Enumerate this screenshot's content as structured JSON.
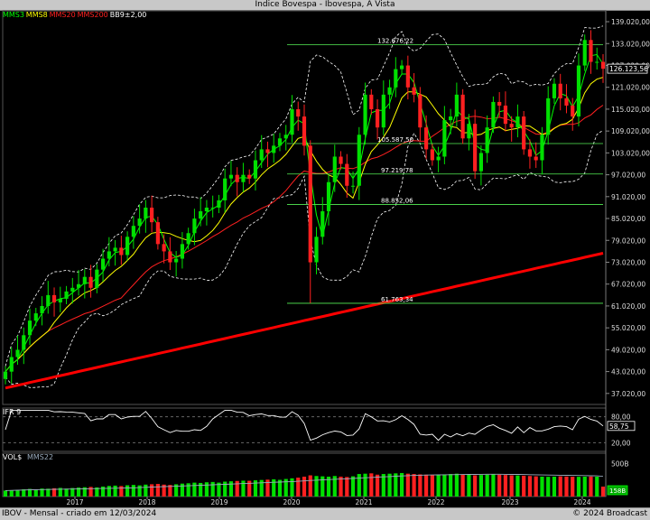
{
  "window": {
    "title": "Índice Bovespa - Ibovespa, A Vista"
  },
  "footer": {
    "left": "IBOV - Mensal - criado em 12/03/2024",
    "right": "© 2024 Broadcast"
  },
  "colors": {
    "up": "#00e000",
    "down": "#ff2020",
    "mms3": "#00ff00",
    "mms8": "#ffff00",
    "mms20": "#ff2020",
    "mms200": "#ff0000",
    "bands": "#ffffff",
    "fib": "#55ee55"
  },
  "chart_data": {
    "type": "candlestick",
    "indicators": [
      {
        "label": "MMS3",
        "color": "#00ff00"
      },
      {
        "label": "MMS8",
        "color": "#ffff00"
      },
      {
        "label": "MMS20",
        "color": "#ff2020"
      },
      {
        "label": "MMS200",
        "color": "#ff2020"
      },
      {
        "label": "BB9±2,00",
        "color": "#ffffff"
      }
    ],
    "ylim": [
      34000,
      142000
    ],
    "y_ticks": [
      "37.020,00",
      "43.020,00",
      "49.020,00",
      "55.020,00",
      "61.020,00",
      "67.020,00",
      "73.020,00",
      "79.020,00",
      "85.020,00",
      "91.020,00",
      "97.020,00",
      "103.020,00",
      "109.020,00",
      "115.020,00",
      "121.020,00",
      "127.020,00",
      "133.020,00",
      "139.020,00"
    ],
    "y_tick_values": [
      37020,
      43020,
      49020,
      55020,
      61020,
      67020,
      73020,
      79020,
      85020,
      91020,
      97020,
      103020,
      109020,
      115020,
      121020,
      127020,
      133020,
      139020
    ],
    "last_price_label": "126.123,56",
    "last_price": 126123.56,
    "year_labels": [
      "2017",
      "2018",
      "2019",
      "2020",
      "2021",
      "2022",
      "2023",
      "2024"
    ],
    "fib_levels": [
      {
        "label": "132.676,22",
        "value": 132676.22
      },
      {
        "label": "105.587,50",
        "value": 105587.5
      },
      {
        "label": "97.219,78",
        "value": 97219.78
      },
      {
        "label": "88.852,06",
        "value": 88852.06
      },
      {
        "label": "61.763,34",
        "value": 61763.34
      }
    ],
    "closes": [
      43000,
      47000,
      49000,
      53000,
      57000,
      59000,
      61000,
      64000,
      62000,
      63000,
      65000,
      66000,
      67000,
      69000,
      66000,
      71000,
      74000,
      76000,
      77000,
      75000,
      80000,
      83000,
      85000,
      88000,
      84000,
      78000,
      76000,
      73000,
      74000,
      78000,
      81000,
      85000,
      87000,
      88000,
      88000,
      90000,
      96000,
      97000,
      95000,
      97000,
      96000,
      101000,
      104000,
      103000,
      105000,
      107000,
      108000,
      115000,
      113000,
      105000,
      73000,
      80000,
      87000,
      95000,
      102000,
      100000,
      94000,
      94000,
      108000,
      119000,
      115000,
      110000,
      119000,
      121000,
      126000,
      127000,
      121000,
      119000,
      110000,
      104000,
      101000,
      102000,
      112000,
      113000,
      119000,
      107000,
      111000,
      98000,
      103000,
      110000,
      117000,
      116000,
      111000,
      110000,
      113000,
      104000,
      102000,
      101000,
      108000,
      118000,
      122000,
      118000,
      116000,
      113000,
      127000,
      134000,
      128000,
      128000,
      126124
    ],
    "volume_values": [
      90,
      95,
      100,
      110,
      115,
      105,
      120,
      118,
      125,
      130,
      120,
      128,
      135,
      140,
      145,
      138,
      150,
      160,
      165,
      158,
      170,
      175,
      168,
      180,
      185,
      190,
      180,
      175,
      185,
      195,
      200,
      210,
      205,
      215,
      220,
      210,
      225,
      230,
      235,
      240,
      238,
      245,
      250,
      255,
      260,
      252,
      265,
      275,
      285,
      300,
      320,
      310,
      305,
      300,
      310,
      300,
      295,
      305,
      340,
      345,
      350,
      330,
      340,
      345,
      350,
      355,
      345,
      340,
      335,
      330,
      325,
      330,
      335,
      340,
      345,
      335,
      330,
      320,
      325,
      330,
      335,
      330,
      325,
      320,
      318,
      315,
      310,
      305,
      300,
      298,
      300,
      305,
      302,
      300,
      298,
      300,
      302,
      300,
      150
    ],
    "ifr": {
      "label": "IFR 9",
      "value_label": "58,75",
      "value": 58.75,
      "ylim": [
        0,
        100
      ],
      "y_ticks": [
        "80,00",
        "20,00"
      ],
      "y_tick_values": [
        80,
        20
      ]
    },
    "volume": {
      "label": "VOL$",
      "avg_label": "MMS22",
      "y_ticks": [
        "500B"
      ],
      "y_tick_values": [
        500
      ],
      "badge": "158B"
    }
  }
}
